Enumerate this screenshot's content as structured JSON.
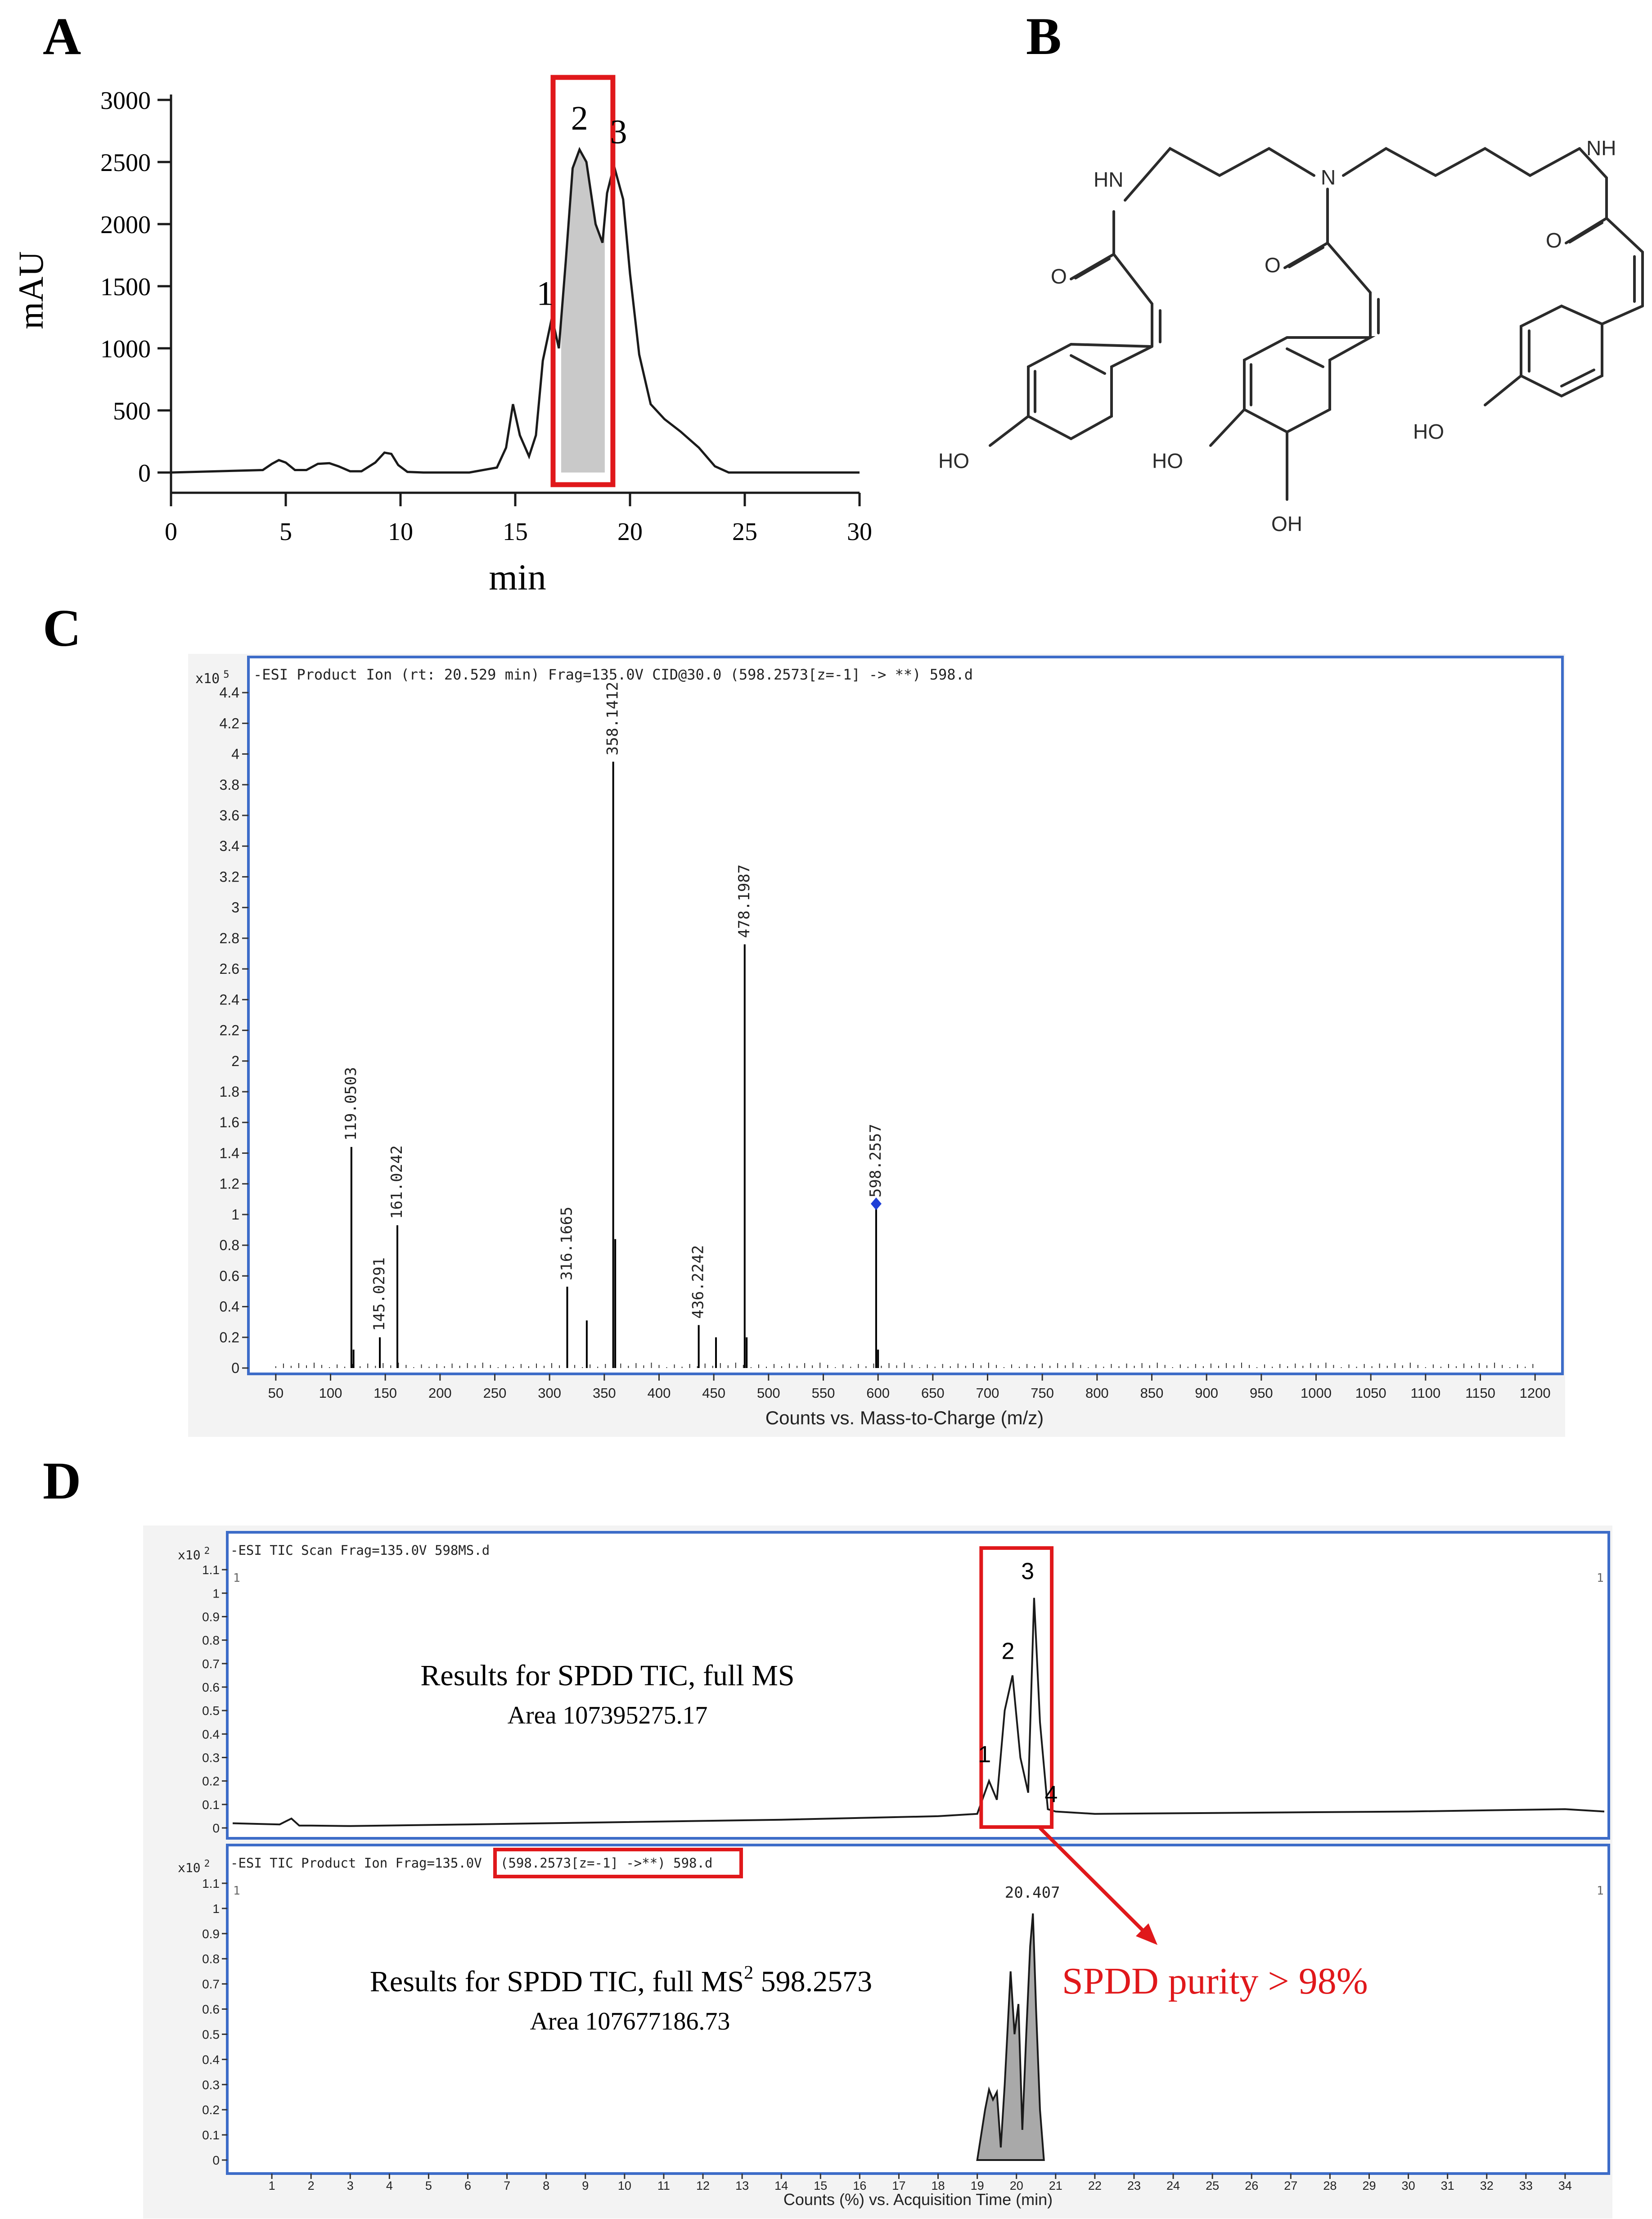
{
  "panels": {
    "a": "A",
    "b": "B",
    "c": "C",
    "d": "D"
  },
  "chart_data": [
    {
      "panel": "A",
      "type": "line",
      "xlabel": "min",
      "ylabel": "mAU",
      "xlim": [
        0,
        30
      ],
      "ylim": [
        0,
        3000
      ],
      "x_ticks": [
        0,
        5,
        10,
        15,
        20,
        25,
        30
      ],
      "y_ticks": [
        0,
        500,
        1000,
        1500,
        2000,
        2500,
        3000
      ],
      "x_tick_labels": [
        "0",
        "5",
        "10",
        "15",
        "20",
        "25",
        "30"
      ],
      "y_tick_labels": [
        "0",
        "500",
        "1000",
        "1500",
        "2000",
        "2500",
        "3000"
      ],
      "series": [
        {
          "x": [
            0,
            4,
            4.4,
            4.7,
            5.0,
            5.4,
            5.9,
            6.4,
            6.9,
            7.3,
            7.8,
            8.3,
            8.9,
            9.3,
            9.6,
            9.9,
            10.3,
            11,
            13,
            14.2,
            14.6,
            14.9,
            15.2,
            15.6,
            15.9,
            16.2,
            16.6,
            16.9,
            17.2,
            17.5,
            17.8,
            18.1,
            18.5,
            18.8,
            19.0,
            19.3,
            19.7,
            20.0,
            20.4,
            20.9,
            21.5,
            22.2,
            23.0,
            23.7,
            24.3,
            25,
            30
          ],
          "y": [
            0,
            20,
            70,
            100,
            80,
            20,
            20,
            70,
            75,
            50,
            10,
            10,
            80,
            160,
            150,
            60,
            5,
            0,
            0,
            40,
            200,
            550,
            300,
            130,
            300,
            900,
            1250,
            1000,
            1700,
            2450,
            2600,
            2500,
            2000,
            1850,
            2250,
            2470,
            2200,
            1600,
            950,
            550,
            430,
            330,
            200,
            50,
            0,
            0,
            0
          ]
        }
      ],
      "highlight_range": [
        17.0,
        18.9
      ],
      "peak_labels": [
        {
          "text": "1",
          "x": 16.3,
          "y": 1350
        },
        {
          "text": "2",
          "x": 17.8,
          "y": 2760
        },
        {
          "text": "3",
          "x": 19.5,
          "y": 2650
        }
      ]
    },
    {
      "panel": "C",
      "type": "bar",
      "title": "-ESI Product Ion (rt: 20.529 min) Frag=135.0V CID@30.0 (598.2573[z=-1] -> **) 598.d",
      "multiplier": "x10",
      "multiplier_exp": "5",
      "xlabel": "Counts vs. Mass-to-Charge (m/z)",
      "xlim": [
        25,
        1225
      ],
      "ylim": [
        0,
        4.5
      ],
      "x_ticks": [
        50,
        100,
        150,
        200,
        250,
        300,
        350,
        400,
        450,
        500,
        550,
        600,
        650,
        700,
        750,
        800,
        850,
        900,
        950,
        1000,
        1050,
        1100,
        1150,
        1200
      ],
      "x_tick_labels": [
        "50",
        "100",
        "150",
        "200",
        "250",
        "300",
        "350",
        "400",
        "450",
        "500",
        "550",
        "600",
        "650",
        "700",
        "750",
        "800",
        "850",
        "900",
        "950",
        "1000",
        "1050",
        "1100",
        "1150",
        "1200"
      ],
      "y_ticks": [
        0,
        0.2,
        0.4,
        0.6,
        0.8,
        1,
        1.2,
        1.4,
        1.6,
        1.8,
        2,
        2.2,
        2.4,
        2.6,
        2.8,
        3,
        3.2,
        3.4,
        3.6,
        3.8,
        4,
        4.2,
        4.4
      ],
      "y_tick_labels": [
        "0",
        "0.2",
        "0.4",
        "0.6",
        "0.8",
        "1",
        "1.2",
        "1.4",
        "1.6",
        "1.8",
        "2",
        "2.2",
        "2.4",
        "2.6",
        "2.8",
        "3",
        "3.2",
        "3.4",
        "3.6",
        "3.8",
        "4",
        "4.2",
        "4.4"
      ],
      "peaks": [
        {
          "mz": 119.0503,
          "intensity": 1.44,
          "label": "119.0503"
        },
        {
          "mz": 121.0,
          "intensity": 0.12,
          "label": ""
        },
        {
          "mz": 145.0291,
          "intensity": 0.2,
          "label": "145.0291"
        },
        {
          "mz": 161.0242,
          "intensity": 0.93,
          "label": "161.0242"
        },
        {
          "mz": 316.1665,
          "intensity": 0.53,
          "label": "316.1665"
        },
        {
          "mz": 334.0,
          "intensity": 0.31,
          "label": ""
        },
        {
          "mz": 358.1412,
          "intensity": 3.95,
          "label": "358.1412"
        },
        {
          "mz": 360.0,
          "intensity": 0.84,
          "label": ""
        },
        {
          "mz": 436.2242,
          "intensity": 0.28,
          "label": "436.2242"
        },
        {
          "mz": 452.0,
          "intensity": 0.2,
          "label": ""
        },
        {
          "mz": 478.1987,
          "intensity": 2.76,
          "label": "478.1987"
        },
        {
          "mz": 480.0,
          "intensity": 0.2,
          "label": ""
        },
        {
          "mz": 598.2557,
          "intensity": 1.07,
          "label": "598.2557"
        },
        {
          "mz": 600.0,
          "intensity": 0.12,
          "label": ""
        }
      ]
    },
    {
      "panel": "D-top",
      "type": "line",
      "title": "-ESI TIC Scan Frag=135.0V 598MS.d",
      "multiplier": "x10",
      "multiplier_exp": "2",
      "xlim": [
        0,
        35
      ],
      "ylim": [
        0,
        1.15
      ],
      "y_ticks": [
        0,
        0.1,
        0.2,
        0.3,
        0.4,
        0.5,
        0.6,
        0.7,
        0.8,
        0.9,
        1,
        1.1
      ],
      "y_tick_labels": [
        "0",
        "0.1",
        "0.2",
        "0.3",
        "0.4",
        "0.5",
        "0.6",
        "0.7",
        "0.8",
        "0.9",
        "1",
        "1.1"
      ],
      "corner_labels": [
        "1",
        "1"
      ],
      "series": [
        {
          "x": [
            0,
            1.2,
            1.5,
            1.7,
            2.0,
            3,
            6,
            10,
            14,
            18,
            19.0,
            19.3,
            19.5,
            19.7,
            19.9,
            20.1,
            20.3,
            20.45,
            20.6,
            20.8,
            21.0,
            22,
            26,
            30,
            34,
            35
          ],
          "y": [
            0.02,
            0.015,
            0.04,
            0.01,
            0.01,
            0.008,
            0.015,
            0.025,
            0.035,
            0.05,
            0.06,
            0.2,
            0.12,
            0.5,
            0.65,
            0.3,
            0.15,
            0.98,
            0.45,
            0.08,
            0.07,
            0.06,
            0.065,
            0.07,
            0.08,
            0.07
          ]
        }
      ],
      "highlight_range": [
        19.1,
        20.9
      ],
      "peak_labels": [
        {
          "text": "1",
          "x": 19.3,
          "y": 0.28
        },
        {
          "text": "2",
          "x": 19.9,
          "y": 0.72
        },
        {
          "text": "3",
          "x": 20.4,
          "y": 1.06
        },
        {
          "text": "4",
          "x": 21.0,
          "y": 0.11
        }
      ],
      "annotation": {
        "line1": "Results for  SPDD TIC, full MS",
        "line2": "Area 107395275.17"
      }
    },
    {
      "panel": "D-bottom",
      "type": "area",
      "title_prefix": "-ESI TIC Product Ion  Frag=135.0V",
      "title_boxed": "(598.2573[z=-1] ->**) 598.d",
      "multiplier": "x10",
      "multiplier_exp": "2",
      "xlabel": "Counts (%) vs. Acquisition Time (min)",
      "xlim": [
        0,
        35
      ],
      "ylim": [
        0,
        1.15
      ],
      "x_ticks": [
        1,
        2,
        3,
        4,
        5,
        6,
        7,
        8,
        9,
        10,
        11,
        12,
        13,
        14,
        15,
        16,
        17,
        18,
        19,
        20,
        21,
        22,
        23,
        24,
        25,
        26,
        27,
        28,
        29,
        30,
        31,
        32,
        33,
        34
      ],
      "x_tick_labels": [
        "1",
        "2",
        "3",
        "4",
        "5",
        "6",
        "7",
        "8",
        "9",
        "10",
        "11",
        "12",
        "13",
        "14",
        "15",
        "16",
        "17",
        "18",
        "19",
        "20",
        "21",
        "22",
        "23",
        "24",
        "25",
        "26",
        "27",
        "28",
        "29",
        "30",
        "31",
        "32",
        "33",
        "34"
      ],
      "y_ticks": [
        0,
        0.1,
        0.2,
        0.3,
        0.4,
        0.5,
        0.6,
        0.7,
        0.8,
        0.9,
        1,
        1.1
      ],
      "y_tick_labels": [
        "0",
        "0.1",
        "0.2",
        "0.3",
        "0.4",
        "0.5",
        "0.6",
        "0.7",
        "0.8",
        "0.9",
        "1",
        "1.1"
      ],
      "corner_labels": [
        "1",
        "1"
      ],
      "series": [
        {
          "x": [
            19.0,
            19.2,
            19.3,
            19.4,
            19.5,
            19.6,
            19.7,
            19.85,
            19.95,
            20.05,
            20.15,
            20.25,
            20.35,
            20.42,
            20.5,
            20.6,
            20.7
          ],
          "y": [
            0,
            0.2,
            0.28,
            0.24,
            0.27,
            0.05,
            0.3,
            0.75,
            0.5,
            0.62,
            0.12,
            0.5,
            0.85,
            0.98,
            0.6,
            0.2,
            0
          ]
        }
      ],
      "apex_label": "20.407",
      "apex": {
        "x": 20.407,
        "y": 1.0
      },
      "annotation": {
        "line1_pre": "Results for  SPDD TIC, full MS",
        "line1_sup": "2",
        "line1_post": " 598.2573",
        "line2": "Area 107677186.73"
      },
      "purity_text": "SPDD purity > 98%"
    }
  ],
  "structure": {
    "labels": [
      "HN",
      "N",
      "NH",
      "O",
      "O",
      "O",
      "HO",
      "HO",
      "OH",
      "HO"
    ]
  },
  "colors": {
    "axis": "#1a1a1a",
    "frame": "#3d6cc8",
    "highlight": "#e0181b",
    "fill": "#c9c9c9",
    "bg_panel": "#f3f3f3",
    "marker": "#1f3fd6"
  }
}
